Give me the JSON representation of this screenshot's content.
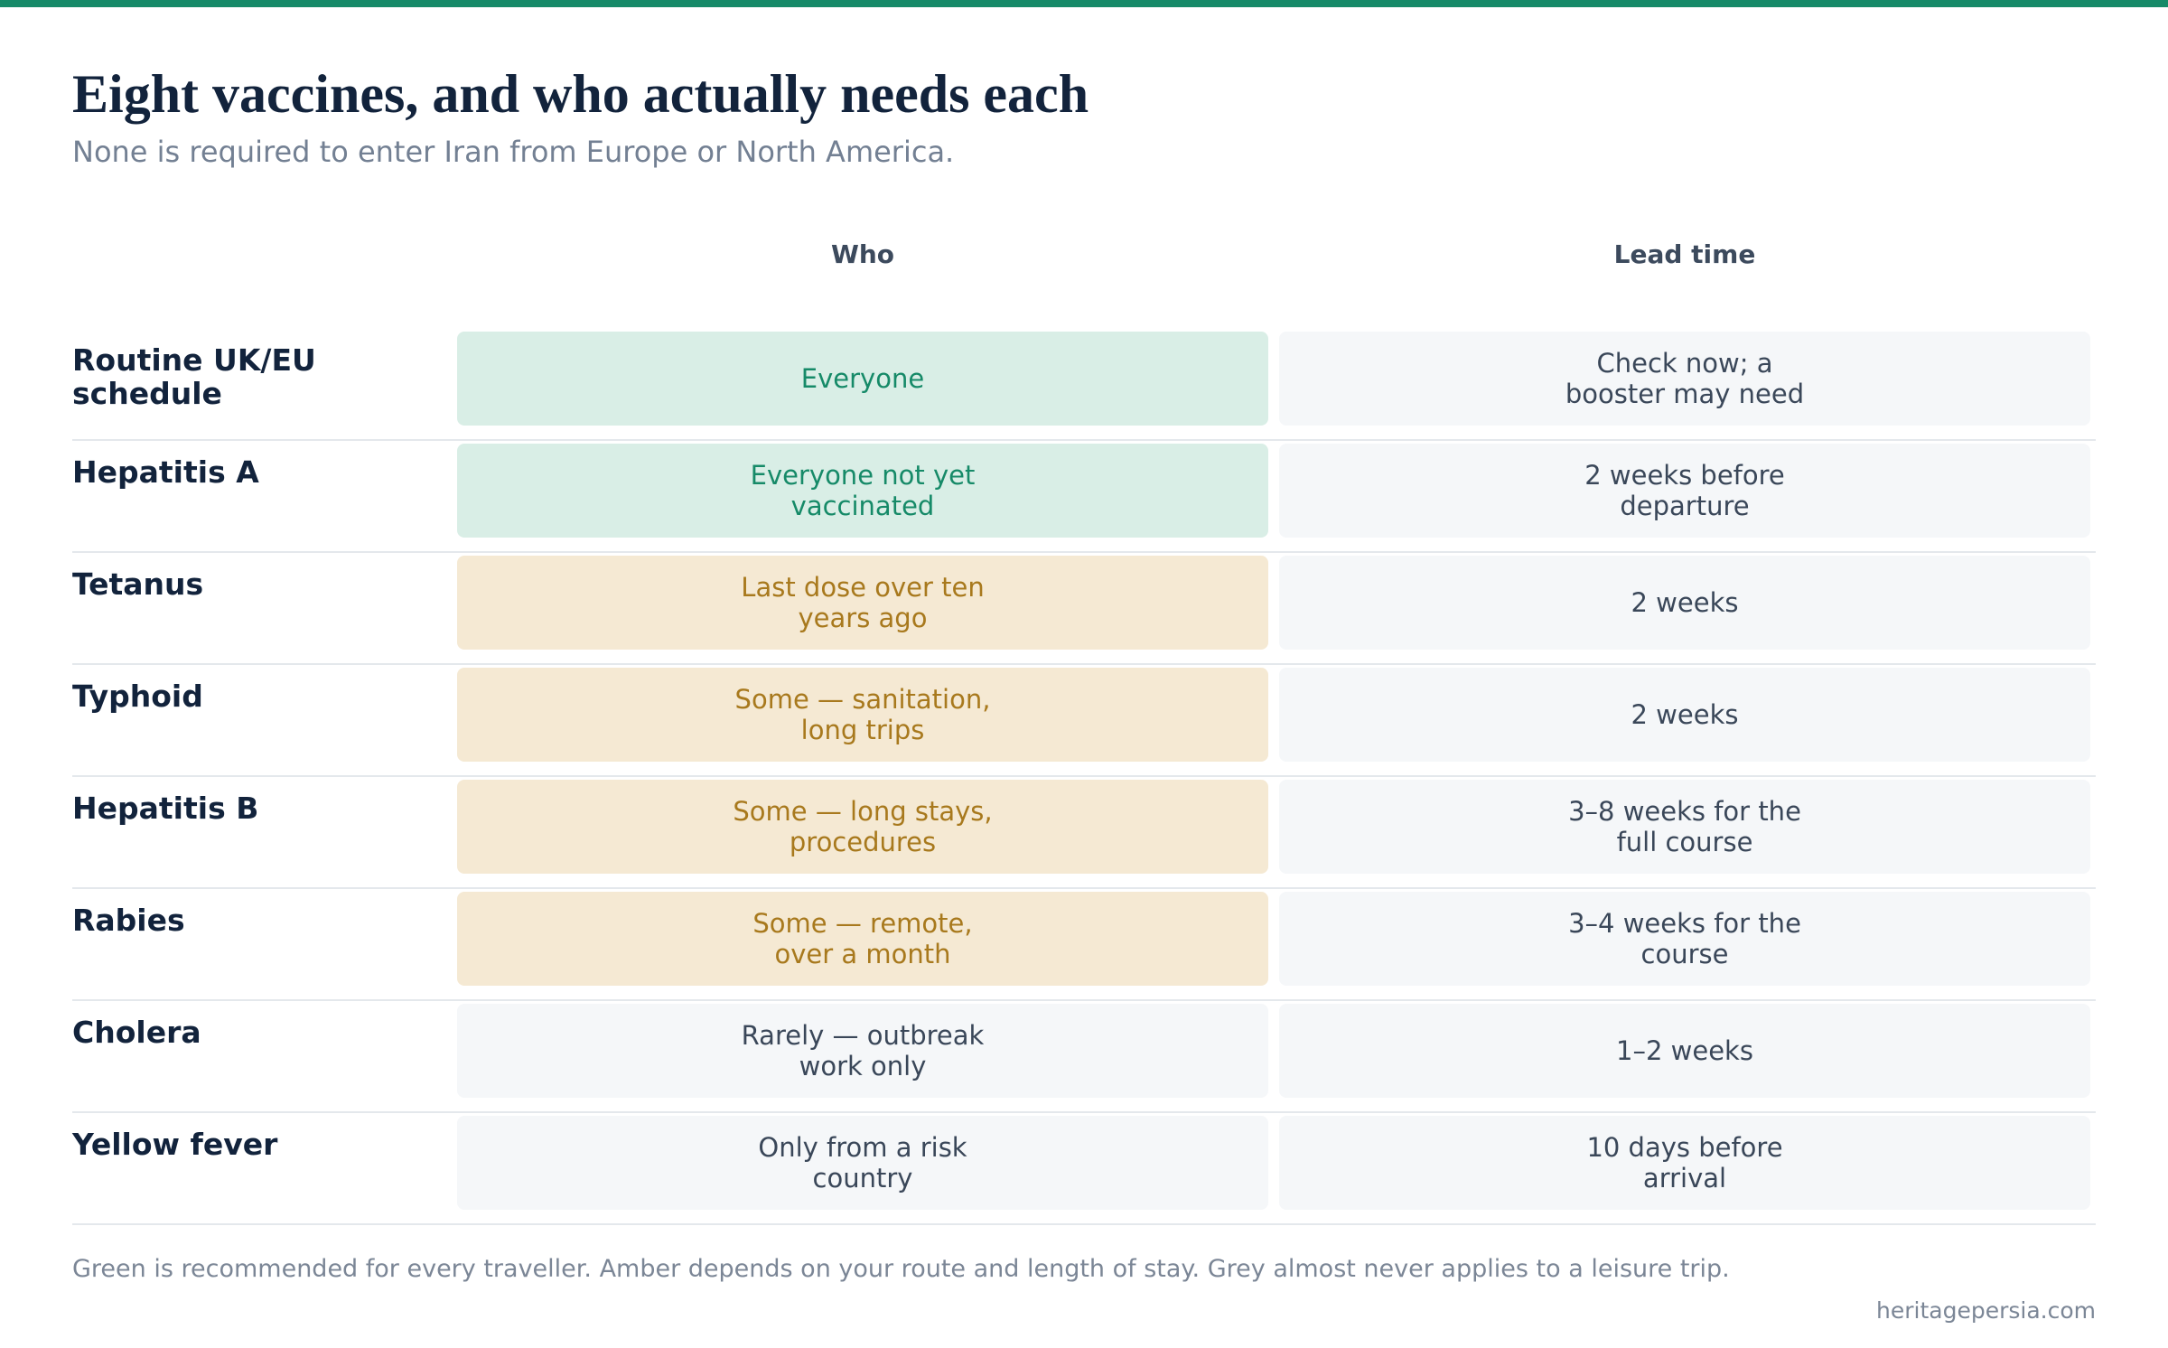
{
  "header": {
    "title": "Eight vaccines, and who actually needs each",
    "subtitle": "None is required to enter Iran from Europe or North America."
  },
  "columns": {
    "who": "Who",
    "lead_time": "Lead time"
  },
  "colors": {
    "accent": "#168a68",
    "green_bg": "#d9eee6",
    "green_text": "#168a68",
    "amber_bg": "#f5e9d3",
    "amber_text": "#a8791d",
    "grey_bg": "#f5f7f9",
    "grey_text": "#3a4759"
  },
  "rows": [
    {
      "vaccine": "Routine UK/EU schedule",
      "who": "Everyone",
      "who_tone": "green",
      "lead_time": "Check now; a booster may need"
    },
    {
      "vaccine": "Hepatitis A",
      "who": "Everyone not yet vaccinated",
      "who_tone": "green",
      "lead_time": "2 weeks before departure"
    },
    {
      "vaccine": "Tetanus",
      "who": "Last dose over ten years ago",
      "who_tone": "amber",
      "lead_time": "2 weeks"
    },
    {
      "vaccine": "Typhoid",
      "who": "Some — sanitation, long trips",
      "who_tone": "amber",
      "lead_time": "2 weeks"
    },
    {
      "vaccine": "Hepatitis B",
      "who": "Some — long stays, procedures",
      "who_tone": "amber",
      "lead_time": "3–8 weeks for the full course"
    },
    {
      "vaccine": "Rabies",
      "who": "Some — remote, over a month",
      "who_tone": "amber",
      "lead_time": "3–4 weeks for the course"
    },
    {
      "vaccine": "Cholera",
      "who": "Rarely — outbreak work only",
      "who_tone": "grey",
      "lead_time": "1–2 weeks"
    },
    {
      "vaccine": "Yellow fever",
      "who": "Only from a risk country",
      "who_tone": "grey",
      "lead_time": "10 days before arrival"
    }
  ],
  "footer": {
    "note": "Green is recommended for every traveller. Amber depends on your route and length of stay. Grey almost never applies to a leisure trip.",
    "source": "heritagepersia.com"
  }
}
